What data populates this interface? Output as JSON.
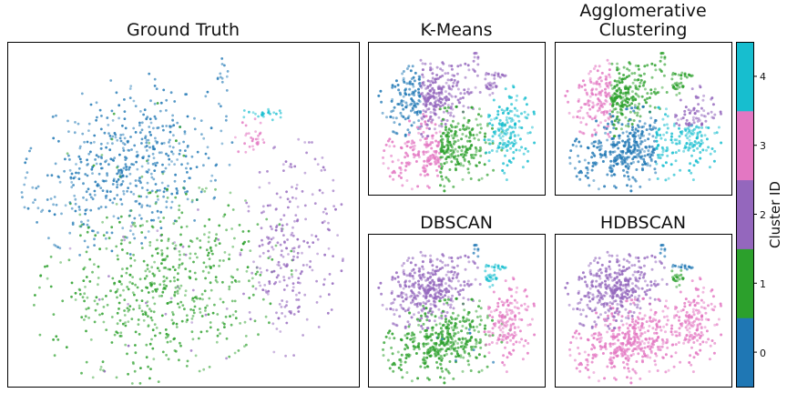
{
  "chart_data": {
    "type": "scatter",
    "colors": {
      "0": "#1f77b4",
      "1": "#2ca02c",
      "2": "#9467bd",
      "3": "#e377c2",
      "4": "#17becf"
    },
    "panels": [
      {
        "id": "ground-truth",
        "title": "Ground Truth"
      },
      {
        "id": "kmeans",
        "title": "K-Means"
      },
      {
        "id": "agglomerative",
        "title": "Agglomerative\nClustering"
      },
      {
        "id": "dbscan",
        "title": "DBSCAN"
      },
      {
        "id": "hdbscan",
        "title": "HDBSCAN"
      }
    ],
    "colorbar": {
      "label": "Cluster ID",
      "ticks": [
        "0",
        "1",
        "2",
        "3",
        "4"
      ],
      "range": [
        -0.5,
        4.5
      ]
    }
  }
}
